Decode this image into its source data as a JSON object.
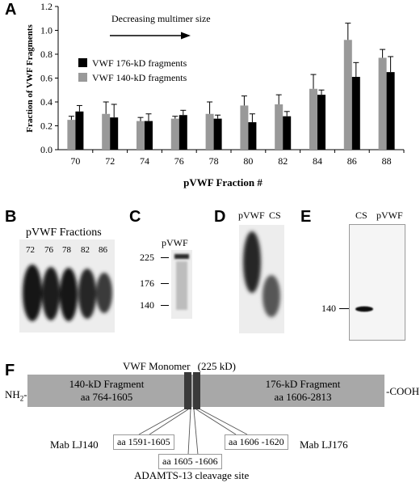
{
  "panels": {
    "A": "A",
    "B": "B",
    "C": "C",
    "D": "D",
    "E": "E",
    "F": "F"
  },
  "chart_data": {
    "type": "bar",
    "categories": [
      "70",
      "72",
      "74",
      "76",
      "78",
      "80",
      "82",
      "84",
      "86",
      "88"
    ],
    "series": [
      {
        "name": "VWF 140-kD fragments",
        "color": "#999999",
        "values": [
          0.25,
          0.3,
          0.24,
          0.26,
          0.3,
          0.37,
          0.38,
          0.51,
          0.92,
          0.77
        ],
        "errors": [
          0.03,
          0.1,
          0.03,
          0.02,
          0.1,
          0.08,
          0.08,
          0.12,
          0.14,
          0.07
        ]
      },
      {
        "name": "VWF 176-kD fragments",
        "color": "#000000",
        "values": [
          0.32,
          0.27,
          0.24,
          0.29,
          0.26,
          0.23,
          0.28,
          0.46,
          0.61,
          0.65
        ],
        "errors": [
          0.05,
          0.11,
          0.06,
          0.04,
          0.03,
          0.07,
          0.04,
          0.04,
          0.12,
          0.13
        ]
      }
    ],
    "legend_order": [
      1,
      0
    ],
    "legend_position": "middle-left",
    "ylim": [
      0,
      1.2
    ],
    "yticks": [
      "0.0",
      "0.2",
      "0.4",
      "0.6",
      "0.8",
      "1.0",
      "1.2"
    ],
    "xlabel": "pVWF Fraction #",
    "ylabel": "Fraction of VWF Fragments",
    "annotation": "Decreasing multimer size",
    "grid": false
  },
  "panel_b": {
    "title": "pVWF Fractions",
    "lanes": [
      "72",
      "76",
      "78",
      "82",
      "86"
    ]
  },
  "panel_c": {
    "lane": "pVWF",
    "markers": [
      "225",
      "176",
      "140"
    ]
  },
  "panel_d": {
    "lanes": [
      "pVWF",
      "CS"
    ]
  },
  "panel_e": {
    "lanes": [
      "CS",
      "pVWF"
    ],
    "marker": "140"
  },
  "panel_f": {
    "title": "VWF Monomer",
    "title_size": "(225 kD)",
    "n_term": "NH",
    "n_term_sub": "2",
    "c_term": "-COOH",
    "left_fragment": {
      "name": "140-kD Fragment",
      "range": "aa 764-1605"
    },
    "right_fragment": {
      "name": "176-kD Fragment",
      "range": "aa 1606-2813"
    },
    "mab_left": "Mab LJ140",
    "mab_right": "Mab LJ176",
    "epitope_left": "aa 1591-1605",
    "epitope_right": "aa 1606 -1620",
    "cleavage_range": "aa 1605 -1606",
    "cleavage_label": "ADAMTS-13 cleavage site"
  }
}
